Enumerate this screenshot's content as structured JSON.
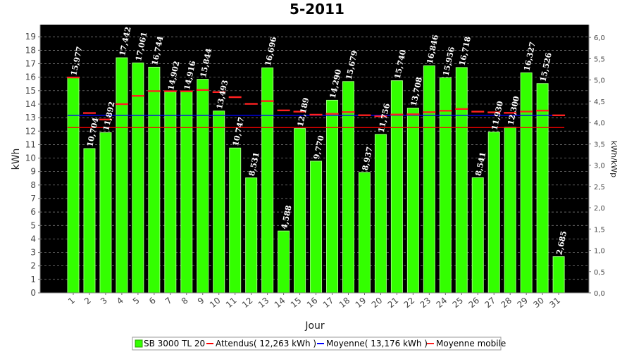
{
  "chart_data": {
    "type": "bar",
    "title": "5-2011",
    "xlabel": "Jour",
    "ylabel": "kWh",
    "ylabel_right": "kWh/kWp",
    "ylim": [
      0,
      19.9
    ],
    "ylim_right": [
      0,
      6.3
    ],
    "y_ticks": [
      "0",
      "1",
      "2",
      "3",
      "4",
      "5",
      "6",
      "7",
      "8",
      "9",
      "10",
      "11",
      "12",
      "13",
      "14",
      "15",
      "16",
      "17",
      "18",
      "19"
    ],
    "y_ticks_right": [
      "0,0",
      "0,5",
      "1,0",
      "1,5",
      "2,0",
      "2,5",
      "3,0",
      "3,5",
      "4,0",
      "4,5",
      "5,0",
      "5,5",
      "6,0"
    ],
    "categories": [
      "1",
      "2",
      "3",
      "4",
      "5",
      "6",
      "7",
      "8",
      "9",
      "10",
      "11",
      "12",
      "13",
      "14",
      "15",
      "16",
      "17",
      "18",
      "19",
      "20",
      "21",
      "22",
      "23",
      "24",
      "25",
      "26",
      "27",
      "28",
      "29",
      "30",
      "31"
    ],
    "series": [
      {
        "name": "SB 3000 TL 20",
        "values": [
          15.977,
          10.704,
          11.892,
          17.442,
          17.061,
          16.744,
          14.902,
          14.916,
          15.844,
          13.493,
          10.747,
          8.531,
          16.696,
          4.588,
          12.189,
          9.77,
          14.29,
          15.679,
          8.937,
          11.756,
          15.74,
          13.708,
          16.846,
          15.956,
          16.718,
          8.541,
          11.93,
          12.3,
          16.327,
          15.526,
          2.685
        ],
        "labels": [
          "15,977",
          "10,704",
          "11,892",
          "17,442",
          "17,061",
          "16,744",
          "14,902",
          "14,916",
          "15,844",
          "13,493",
          "10,747",
          "8,531",
          "16,696",
          "4,588",
          "12,189",
          "9,770",
          "14,290",
          "15,679",
          "8,937",
          "11,756",
          "15,740",
          "13,708",
          "16,846",
          "15,956",
          "16,718",
          "8,541",
          "11,930",
          "12,300",
          "16,327",
          "15,526",
          "2,685"
        ]
      },
      {
        "name": "Attendus( 12,263 kWh )",
        "value": 12.263
      },
      {
        "name": "Moyenne( 13,176 kWh )",
        "value": 13.176
      },
      {
        "name": "Moyenne mobile",
        "values": [
          15.977,
          13.34,
          12.858,
          14.004,
          14.616,
          14.97,
          14.961,
          14.955,
          15.054,
          14.898,
          14.52,
          14.021,
          14.227,
          13.538,
          13.448,
          13.218,
          13.281,
          13.414,
          13.178,
          13.107,
          13.229,
          13.251,
          13.408,
          13.514,
          13.643,
          13.447,
          13.391,
          13.353,
          13.455,
          13.521,
          13.171
        ]
      }
    ],
    "colors": {
      "bar": "#33ff00",
      "bar_edge": "#9cff7a",
      "expected": "#ff0000",
      "average": "#0000ff",
      "moving": "#ff2020",
      "plot_bg": "#000000",
      "grid": "#8c8c8c"
    },
    "legend": {
      "position": "bottom"
    },
    "grid": true
  }
}
